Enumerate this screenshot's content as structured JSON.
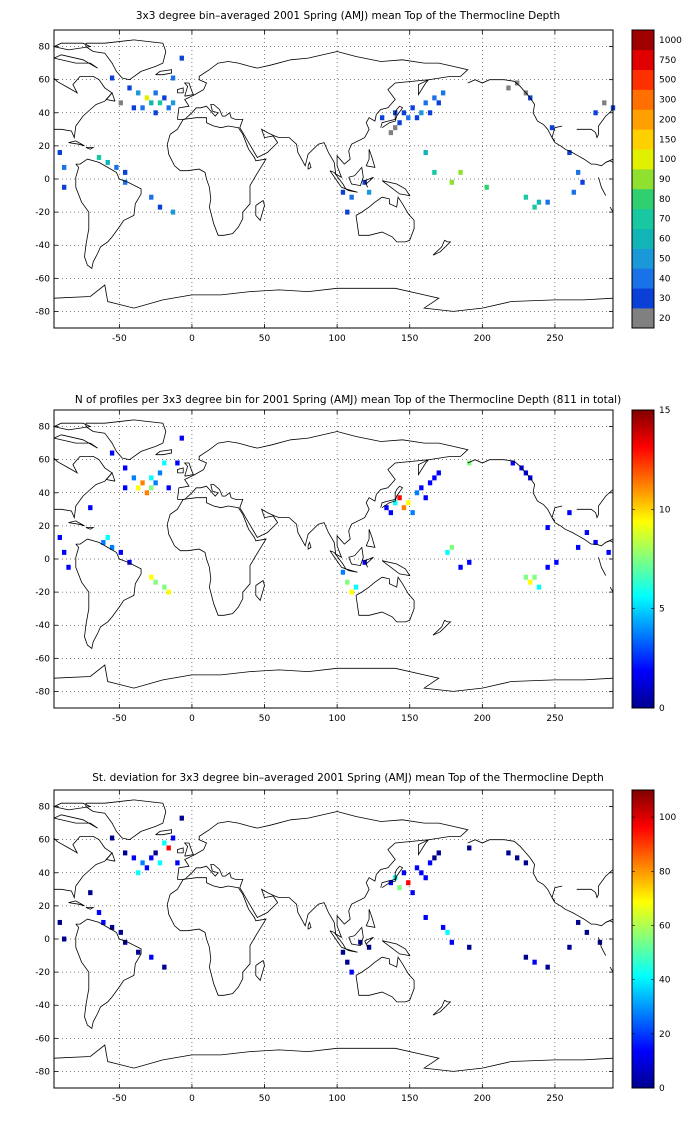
{
  "panels": [
    {
      "id": "mean",
      "title": "3x3 degree bin–averaged 2001 Spring (AMJ) mean Top of the Thermocline Depth",
      "colorbar": {
        "type": "discrete",
        "labels": [
          "20",
          "30",
          "40",
          "50",
          "60",
          "70",
          "80",
          "90",
          "100",
          "150",
          "200",
          "300",
          "500",
          "750",
          "1000"
        ],
        "colors": [
          "#808080",
          "#0a40d8",
          "#1a72e8",
          "#1a98d8",
          "#12b5b5",
          "#18c8a0",
          "#30d070",
          "#90e030",
          "#e0f000",
          "#ffd000",
          "#ffa000",
          "#ff7000",
          "#ff3000",
          "#e00000",
          "#a00000"
        ]
      },
      "chart_data": {
        "type": "heatmap",
        "xlim": [
          -95,
          290
        ],
        "ylim": [
          -90,
          90
        ],
        "x_ticks": [
          -50,
          0,
          50,
          100,
          150,
          200,
          250
        ],
        "y_ticks": [
          -80,
          -60,
          -40,
          -20,
          0,
          20,
          40,
          60,
          80
        ],
        "grid": true,
        "bins": [
          [
            -55,
            61,
            1
          ],
          [
            -43,
            55,
            1
          ],
          [
            -37,
            52,
            3
          ],
          [
            -31,
            49,
            8
          ],
          [
            -28,
            46,
            4
          ],
          [
            -25,
            52,
            2
          ],
          [
            -22,
            46,
            5
          ],
          [
            -19,
            49,
            1
          ],
          [
            -16,
            43,
            2
          ],
          [
            -13,
            46,
            3
          ],
          [
            -49,
            46,
            0
          ],
          [
            -40,
            43,
            1
          ],
          [
            -34,
            43,
            2
          ],
          [
            -25,
            40,
            1
          ],
          [
            -13,
            61,
            2
          ],
          [
            -7,
            73,
            1
          ],
          [
            -91,
            16,
            1
          ],
          [
            -88,
            7,
            2
          ],
          [
            -88,
            -5,
            1
          ],
          [
            -64,
            13,
            5
          ],
          [
            -58,
            10,
            4
          ],
          [
            -52,
            7,
            2
          ],
          [
            -46,
            4,
            1
          ],
          [
            -46,
            -2,
            2
          ],
          [
            -28,
            -11,
            2
          ],
          [
            -22,
            -17,
            1
          ],
          [
            -13,
            -20,
            3
          ],
          [
            137,
            28,
            0
          ],
          [
            140,
            31,
            0
          ],
          [
            143,
            34,
            1
          ],
          [
            146,
            40,
            1
          ],
          [
            149,
            37,
            2
          ],
          [
            152,
            43,
            1
          ],
          [
            155,
            37,
            1
          ],
          [
            158,
            40,
            3
          ],
          [
            161,
            46,
            2
          ],
          [
            164,
            40,
            1
          ],
          [
            167,
            49,
            2
          ],
          [
            170,
            46,
            1
          ],
          [
            173,
            52,
            2
          ],
          [
            140,
            40,
            1
          ],
          [
            131,
            37,
            1
          ],
          [
            104,
            -8,
            1
          ],
          [
            107,
            -20,
            1
          ],
          [
            110,
            -11,
            2
          ],
          [
            119,
            -2,
            1
          ],
          [
            122,
            -8,
            3
          ],
          [
            161,
            16,
            4
          ],
          [
            167,
            4,
            5
          ],
          [
            179,
            -2,
            7
          ],
          [
            185,
            4,
            7
          ],
          [
            203,
            -5,
            6
          ],
          [
            230,
            -11,
            5
          ],
          [
            236,
            -17,
            5
          ],
          [
            239,
            -14,
            4
          ],
          [
            245,
            -14,
            2
          ],
          [
            218,
            55,
            0
          ],
          [
            224,
            58,
            0
          ],
          [
            230,
            52,
            0
          ],
          [
            233,
            49,
            1
          ],
          [
            248,
            31,
            1
          ],
          [
            260,
            16,
            1
          ],
          [
            266,
            4,
            2
          ],
          [
            269,
            -2,
            1
          ],
          [
            263,
            -8,
            2
          ],
          [
            278,
            40,
            1
          ],
          [
            284,
            46,
            0
          ],
          [
            290,
            43,
            1
          ]
        ]
      }
    },
    {
      "id": "count",
      "title": "N of profiles per 3x3 degree bin for 2001 Spring (AMJ) mean Top of the Thermocline Depth  (811 in total)",
      "colorbar": {
        "type": "continuous",
        "labels": [
          "0",
          "5",
          "10",
          "15"
        ],
        "values": [
          0,
          5,
          10,
          15
        ],
        "range": [
          0,
          15
        ]
      },
      "chart_data": {
        "type": "heatmap",
        "xlim": [
          -95,
          290
        ],
        "ylim": [
          -90,
          90
        ],
        "x_ticks": [
          -50,
          0,
          50,
          100,
          150,
          200,
          250
        ],
        "y_ticks": [
          -80,
          -60,
          -40,
          -20,
          0,
          20,
          40,
          60,
          80
        ],
        "grid": true,
        "bins": [
          [
            -55,
            64,
            1
          ],
          [
            -46,
            55,
            1
          ],
          [
            -40,
            49,
            4
          ],
          [
            -37,
            43,
            10
          ],
          [
            -34,
            46,
            11
          ],
          [
            -31,
            40,
            12
          ],
          [
            -28,
            49,
            5
          ],
          [
            -25,
            46,
            4
          ],
          [
            -22,
            52,
            3
          ],
          [
            -19,
            58,
            6
          ],
          [
            -16,
            43,
            2
          ],
          [
            -10,
            58,
            1
          ],
          [
            -7,
            73,
            1
          ],
          [
            -46,
            43,
            2
          ],
          [
            -28,
            43,
            8
          ],
          [
            -91,
            13,
            1
          ],
          [
            -88,
            4,
            2
          ],
          [
            -85,
            -5,
            1
          ],
          [
            -70,
            31,
            1
          ],
          [
            -61,
            10,
            4
          ],
          [
            -58,
            13,
            6
          ],
          [
            -55,
            7,
            3
          ],
          [
            -49,
            4,
            2
          ],
          [
            -43,
            -2,
            1
          ],
          [
            -28,
            -11,
            9
          ],
          [
            -25,
            -14,
            8
          ],
          [
            -19,
            -17,
            7
          ],
          [
            -16,
            -20,
            9
          ],
          [
            134,
            31,
            2
          ],
          [
            137,
            28,
            1
          ],
          [
            140,
            34,
            6
          ],
          [
            143,
            37,
            13
          ],
          [
            146,
            31,
            12
          ],
          [
            149,
            34,
            10
          ],
          [
            152,
            28,
            3
          ],
          [
            155,
            40,
            3
          ],
          [
            158,
            43,
            2
          ],
          [
            161,
            37,
            1
          ],
          [
            164,
            46,
            2
          ],
          [
            167,
            49,
            2
          ],
          [
            170,
            52,
            1
          ],
          [
            104,
            -8,
            3
          ],
          [
            107,
            -14,
            8
          ],
          [
            110,
            -20,
            9
          ],
          [
            113,
            -17,
            6
          ],
          [
            119,
            -2,
            1
          ],
          [
            176,
            4,
            5
          ],
          [
            179,
            7,
            8
          ],
          [
            185,
            -5,
            2
          ],
          [
            191,
            -2,
            1
          ],
          [
            230,
            -11,
            7
          ],
          [
            233,
            -14,
            9
          ],
          [
            236,
            -11,
            8
          ],
          [
            239,
            -17,
            5
          ],
          [
            245,
            -5,
            2
          ],
          [
            251,
            -2,
            1
          ],
          [
            191,
            58,
            7
          ],
          [
            221,
            58,
            1
          ],
          [
            227,
            55,
            1
          ],
          [
            230,
            52,
            2
          ],
          [
            233,
            49,
            1
          ],
          [
            245,
            19,
            1
          ],
          [
            260,
            28,
            1
          ],
          [
            266,
            7,
            1
          ],
          [
            272,
            16,
            2
          ],
          [
            278,
            10,
            1
          ],
          [
            287,
            4,
            1
          ]
        ]
      }
    },
    {
      "id": "std",
      "title": "St. deviation for 3x3 degree bin–averaged 2001 Spring (AMJ) mean Top of the Thermocline Depth",
      "colorbar": {
        "type": "continuous",
        "labels": [
          "0",
          "20",
          "40",
          "60",
          "80",
          "100"
        ],
        "values": [
          0,
          20,
          40,
          60,
          80,
          100
        ],
        "range": [
          0,
          110
        ]
      },
      "chart_data": {
        "type": "heatmap",
        "xlim": [
          -95,
          290
        ],
        "ylim": [
          -90,
          90
        ],
        "x_ticks": [
          -50,
          0,
          50,
          100,
          150,
          200,
          250
        ],
        "y_ticks": [
          -80,
          -60,
          -40,
          -20,
          0,
          20,
          40,
          60,
          80
        ],
        "grid": true,
        "bins": [
          [
            -55,
            61,
            6
          ],
          [
            -46,
            52,
            4
          ],
          [
            -40,
            49,
            10
          ],
          [
            -37,
            40,
            45
          ],
          [
            -34,
            46,
            30
          ],
          [
            -31,
            43,
            12
          ],
          [
            -28,
            49,
            8
          ],
          [
            -25,
            52,
            6
          ],
          [
            -22,
            46,
            40
          ],
          [
            -19,
            58,
            35
          ],
          [
            -16,
            55,
            95
          ],
          [
            -13,
            61,
            8
          ],
          [
            -7,
            73,
            4
          ],
          [
            -10,
            46,
            8
          ],
          [
            -91,
            10,
            6
          ],
          [
            -88,
            0,
            4
          ],
          [
            -70,
            28,
            6
          ],
          [
            -64,
            16,
            8
          ],
          [
            -61,
            10,
            10
          ],
          [
            -55,
            7,
            6
          ],
          [
            -49,
            4,
            4
          ],
          [
            -46,
            -2,
            5
          ],
          [
            -37,
            -8,
            6
          ],
          [
            -28,
            -11,
            7
          ],
          [
            -19,
            -17,
            5
          ],
          [
            137,
            34,
            10
          ],
          [
            140,
            37,
            45
          ],
          [
            143,
            31,
            55
          ],
          [
            146,
            40,
            20
          ],
          [
            149,
            34,
            90
          ],
          [
            152,
            28,
            8
          ],
          [
            155,
            43,
            10
          ],
          [
            158,
            40,
            12
          ],
          [
            161,
            37,
            8
          ],
          [
            164,
            46,
            10
          ],
          [
            167,
            49,
            6
          ],
          [
            170,
            52,
            4
          ],
          [
            104,
            -8,
            6
          ],
          [
            107,
            -14,
            5
          ],
          [
            110,
            -20,
            8
          ],
          [
            116,
            -2,
            4
          ],
          [
            122,
            -5,
            6
          ],
          [
            161,
            13,
            8
          ],
          [
            173,
            7,
            10
          ],
          [
            176,
            4,
            35
          ],
          [
            179,
            -2,
            12
          ],
          [
            191,
            -5,
            5
          ],
          [
            230,
            -11,
            6
          ],
          [
            236,
            -14,
            8
          ],
          [
            245,
            -17,
            5
          ],
          [
            260,
            -5,
            6
          ],
          [
            191,
            55,
            6
          ],
          [
            218,
            52,
            4
          ],
          [
            224,
            49,
            6
          ],
          [
            230,
            46,
            5
          ],
          [
            266,
            10,
            6
          ],
          [
            272,
            4,
            4
          ],
          [
            281,
            -2,
            5
          ]
        ]
      }
    }
  ]
}
